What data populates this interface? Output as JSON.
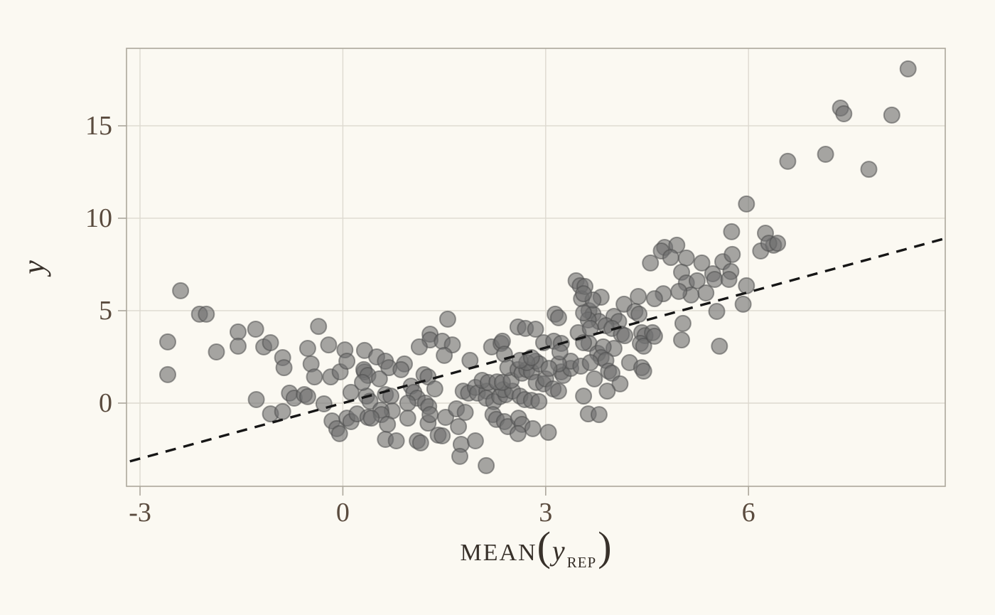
{
  "style": {
    "background": "#FBF9F2",
    "grid_color": "#DDD9D0",
    "spine_color": "#ACA79C",
    "tick_color": "#ACA79C",
    "tick_label_color": "#5A4B3E",
    "axis_title_color": "#38312A",
    "identity_line_color": "#161616",
    "point_fill": "#707070",
    "point_stroke": "#4F4F4F"
  },
  "chart_data": {
    "type": "scatter",
    "title": "",
    "ylabel": "y",
    "xlabel_text": "MEAN(y REP)",
    "xlabel_parts": {
      "prefix": "MEAN",
      "open": "(",
      "variable": "y",
      "subscript": "REP",
      "close": ")"
    },
    "xlim": [
      -3.2,
      8.91
    ],
    "ylim": [
      -4.5,
      19.19
    ],
    "x_ticks": [
      {
        "value": -3,
        "label": "-3"
      },
      {
        "value": 0,
        "label": "0"
      },
      {
        "value": 3,
        "label": "3"
      },
      {
        "value": 6,
        "label": "6"
      }
    ],
    "y_ticks": [
      {
        "value": 0,
        "label": "0"
      },
      {
        "value": 5,
        "label": "5"
      },
      {
        "value": 10,
        "label": "10"
      },
      {
        "value": 15,
        "label": "15"
      }
    ],
    "grid": true,
    "legend": false,
    "identity_line": {
      "style": "dashed",
      "x1": -3.15,
      "y1": -3.15,
      "x2": 8.87,
      "y2": 8.87
    },
    "point_radius_px": 11,
    "points": [
      [
        -2.4,
        6.08
      ],
      [
        -2.12,
        4.81
      ],
      [
        -2.02,
        4.81
      ],
      [
        -2.59,
        3.31
      ],
      [
        -2.59,
        1.54
      ],
      [
        -1.87,
        2.77
      ],
      [
        -1.55,
        3.85
      ],
      [
        -1.55,
        3.08
      ],
      [
        -1.29,
        4.0
      ],
      [
        -1.17,
        3.04
      ],
      [
        -1.07,
        3.27
      ],
      [
        -0.89,
        2.46
      ],
      [
        -0.87,
        1.92
      ],
      [
        -0.52,
        2.96
      ],
      [
        -0.47,
        2.12
      ],
      [
        -0.42,
        1.42
      ],
      [
        -0.36,
        4.15
      ],
      [
        -0.21,
        3.15
      ],
      [
        -0.18,
        1.42
      ],
      [
        -0.04,
        1.69
      ],
      [
        0.03,
        2.88
      ],
      [
        0.06,
        2.27
      ],
      [
        0.12,
        0.58
      ],
      [
        0.32,
        2.85
      ],
      [
        0.32,
        1.69
      ],
      [
        0.35,
        0.38
      ],
      [
        0.4,
        0.1
      ],
      [
        -1.28,
        0.19
      ],
      [
        -1.07,
        -0.58
      ],
      [
        -0.89,
        -0.46
      ],
      [
        -0.79,
        0.54
      ],
      [
        -0.72,
        0.27
      ],
      [
        -0.57,
        0.46
      ],
      [
        -0.52,
        0.35
      ],
      [
        -0.28,
        -0.04
      ],
      [
        -0.16,
        -0.96
      ],
      [
        -0.09,
        -1.38
      ],
      [
        -0.05,
        -1.65
      ],
      [
        0.06,
        -0.81
      ],
      [
        0.12,
        -1.0
      ],
      [
        0.21,
        -0.58
      ],
      [
        0.37,
        -0.77
      ],
      [
        1.55,
        4.54
      ],
      [
        3.45,
        6.62
      ],
      [
        3.51,
        6.35
      ],
      [
        3.53,
        5.65
      ],
      [
        3.64,
        5.0
      ],
      [
        3.7,
        4.81
      ],
      [
        3.14,
        4.81
      ],
      [
        3.19,
        4.62
      ],
      [
        2.59,
        4.12
      ],
      [
        2.7,
        4.04
      ],
      [
        2.85,
        4.0
      ],
      [
        1.29,
        3.73
      ],
      [
        1.29,
        3.42
      ],
      [
        1.47,
        3.35
      ],
      [
        1.62,
        3.15
      ],
      [
        1.13,
        3.04
      ],
      [
        1.5,
        2.58
      ],
      [
        2.2,
        3.04
      ],
      [
        2.34,
        3.23
      ],
      [
        2.36,
        3.35
      ],
      [
        2.39,
        2.65
      ],
      [
        1.88,
        2.31
      ],
      [
        0.5,
        2.5
      ],
      [
        0.63,
        2.27
      ],
      [
        0.68,
        1.92
      ],
      [
        0.31,
        1.81
      ],
      [
        0.37,
        1.5
      ],
      [
        0.54,
        1.31
      ],
      [
        0.29,
        1.12
      ],
      [
        0.63,
        0.46
      ],
      [
        0.71,
        0.38
      ],
      [
        0.91,
        2.12
      ],
      [
        0.86,
        1.81
      ],
      [
        1.2,
        1.54
      ],
      [
        1.26,
        1.42
      ],
      [
        1.36,
        0.77
      ],
      [
        1.01,
        0.92
      ],
      [
        1.05,
        0.58
      ],
      [
        1.1,
        0.27
      ],
      [
        0.96,
        0.0
      ],
      [
        1.22,
        0.0
      ],
      [
        1.27,
        -0.19
      ],
      [
        0.96,
        -0.81
      ],
      [
        0.73,
        -0.42
      ],
      [
        0.56,
        -0.38
      ],
      [
        0.57,
        -0.62
      ],
      [
        0.42,
        -0.81
      ],
      [
        0.66,
        -1.15
      ],
      [
        0.63,
        -1.96
      ],
      [
        0.79,
        -2.04
      ],
      [
        1.1,
        -2.04
      ],
      [
        1.15,
        -2.15
      ],
      [
        1.41,
        -1.73
      ],
      [
        1.47,
        -1.77
      ],
      [
        1.26,
        -1.08
      ],
      [
        1.29,
        -0.62
      ],
      [
        1.52,
        -0.77
      ],
      [
        1.71,
        -1.27
      ],
      [
        1.75,
        -2.23
      ],
      [
        1.73,
        -2.88
      ],
      [
        1.96,
        -2.04
      ],
      [
        2.12,
        -3.38
      ],
      [
        1.68,
        -0.31
      ],
      [
        1.81,
        -0.5
      ],
      [
        1.78,
        0.65
      ],
      [
        1.86,
        0.54
      ],
      [
        1.96,
        0.85
      ],
      [
        1.99,
        0.54
      ],
      [
        2.13,
        0.65
      ],
      [
        2.12,
        0.27
      ],
      [
        2.23,
        0.08
      ],
      [
        2.32,
        0.35
      ],
      [
        2.41,
        0.46
      ],
      [
        2.37,
        0.73
      ],
      [
        2.51,
        0.65
      ],
      [
        2.62,
        0.38
      ],
      [
        2.69,
        0.19
      ],
      [
        2.79,
        0.15
      ],
      [
        2.9,
        0.08
      ],
      [
        2.22,
        -0.62
      ],
      [
        2.27,
        -0.88
      ],
      [
        2.39,
        -1.0
      ],
      [
        2.44,
        -1.27
      ],
      [
        2.6,
        -0.81
      ],
      [
        2.65,
        -1.15
      ],
      [
        2.81,
        -1.38
      ],
      [
        2.59,
        -1.65
      ],
      [
        3.04,
        -1.58
      ],
      [
        2.06,
        1.23
      ],
      [
        2.15,
        1.12
      ],
      [
        2.28,
        1.15
      ],
      [
        2.36,
        1.12
      ],
      [
        2.49,
        1.23
      ],
      [
        2.44,
        1.92
      ],
      [
        2.59,
        1.81
      ],
      [
        2.65,
        1.62
      ],
      [
        2.72,
        1.81
      ],
      [
        2.79,
        1.69
      ],
      [
        2.86,
        1.12
      ],
      [
        2.97,
        1.04
      ],
      [
        3.0,
        1.31
      ],
      [
        3.11,
        0.77
      ],
      [
        3.19,
        0.65
      ],
      [
        3.23,
        1.69
      ],
      [
        3.26,
        1.5
      ],
      [
        3.37,
        1.88
      ],
      [
        3.37,
        2.27
      ],
      [
        3.19,
        2.12
      ],
      [
        2.85,
        2.27
      ],
      [
        2.91,
        2.12
      ],
      [
        2.72,
        2.19
      ],
      [
        2.62,
        2.31
      ],
      [
        2.97,
        3.27
      ],
      [
        3.12,
        3.35
      ],
      [
        3.23,
        3.23
      ],
      [
        3.21,
        2.77
      ],
      [
        2.79,
        2.46
      ],
      [
        3.05,
        1.88
      ],
      [
        3.52,
        2.0
      ],
      [
        3.48,
        3.81
      ],
      [
        4.76,
        8.42
      ],
      [
        4.94,
        8.54
      ],
      [
        4.71,
        8.23
      ],
      [
        4.85,
        7.88
      ],
      [
        5.08,
        7.85
      ],
      [
        4.55,
        7.58
      ],
      [
        5.31,
        7.58
      ],
      [
        5.62,
        7.65
      ],
      [
        5.76,
        8.04
      ],
      [
        6.18,
        8.23
      ],
      [
        6.37,
        8.54
      ],
      [
        5.01,
        7.08
      ],
      [
        5.47,
        7.0
      ],
      [
        5.5,
        6.69
      ],
      [
        5.74,
        7.12
      ],
      [
        5.71,
        6.69
      ],
      [
        5.08,
        6.5
      ],
      [
        5.24,
        6.62
      ],
      [
        5.97,
        6.35
      ],
      [
        5.92,
        5.35
      ],
      [
        5.37,
        5.96
      ],
      [
        5.15,
        5.85
      ],
      [
        4.97,
        6.04
      ],
      [
        4.74,
        5.92
      ],
      [
        4.61,
        5.65
      ],
      [
        4.37,
        5.77
      ],
      [
        4.16,
        5.35
      ],
      [
        5.53,
        4.96
      ],
      [
        5.03,
        4.31
      ],
      [
        5.01,
        3.42
      ],
      [
        5.57,
        3.08
      ],
      [
        4.01,
        4.69
      ],
      [
        4.08,
        4.42
      ],
      [
        4.32,
        4.96
      ],
      [
        4.38,
        4.81
      ],
      [
        3.82,
        5.73
      ],
      [
        3.7,
        5.58
      ],
      [
        3.58,
        6.31
      ],
      [
        3.56,
        5.92
      ],
      [
        3.79,
        4.42
      ],
      [
        3.63,
        4.5
      ],
      [
        3.56,
        4.88
      ],
      [
        3.89,
        4.19
      ],
      [
        3.98,
        4.04
      ],
      [
        3.66,
        4.04
      ],
      [
        4.12,
        3.73
      ],
      [
        4.17,
        3.65
      ],
      [
        4.42,
        3.81
      ],
      [
        4.47,
        3.65
      ],
      [
        4.58,
        3.81
      ],
      [
        4.4,
        3.23
      ],
      [
        4.45,
        3.08
      ],
      [
        4.61,
        3.62
      ],
      [
        4.01,
        2.96
      ],
      [
        3.64,
        3.23
      ],
      [
        3.56,
        3.27
      ],
      [
        3.77,
        2.69
      ],
      [
        3.85,
        3.04
      ],
      [
        3.82,
        2.46
      ],
      [
        3.89,
        2.31
      ],
      [
        3.66,
        2.19
      ],
      [
        4.24,
        2.19
      ],
      [
        4.42,
        1.92
      ],
      [
        4.45,
        1.73
      ],
      [
        3.93,
        1.73
      ],
      [
        3.98,
        1.62
      ],
      [
        3.72,
        1.31
      ],
      [
        4.1,
        1.04
      ],
      [
        3.91,
        0.65
      ],
      [
        3.56,
        0.38
      ],
      [
        3.63,
        -0.58
      ],
      [
        3.79,
        -0.62
      ],
      [
        8.36,
        18.08
      ],
      [
        7.36,
        15.96
      ],
      [
        7.41,
        15.65
      ],
      [
        8.12,
        15.58
      ],
      [
        7.14,
        13.46
      ],
      [
        6.58,
        13.08
      ],
      [
        7.78,
        12.65
      ],
      [
        5.97,
        10.77
      ],
      [
        5.75,
        9.27
      ],
      [
        6.25,
        9.19
      ],
      [
        6.3,
        8.65
      ],
      [
        6.43,
        8.65
      ]
    ]
  }
}
